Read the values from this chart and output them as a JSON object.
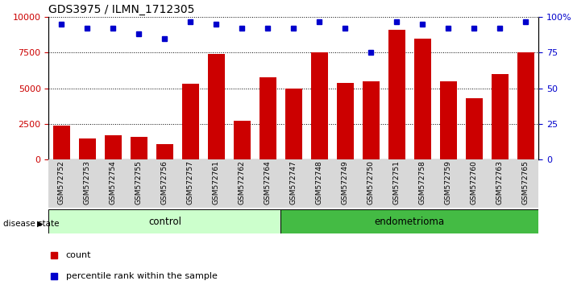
{
  "title": "GDS3975 / ILMN_1712305",
  "samples": [
    "GSM572752",
    "GSM572753",
    "GSM572754",
    "GSM572755",
    "GSM572756",
    "GSM572757",
    "GSM572761",
    "GSM572762",
    "GSM572764",
    "GSM572747",
    "GSM572748",
    "GSM572749",
    "GSM572750",
    "GSM572751",
    "GSM572758",
    "GSM572759",
    "GSM572760",
    "GSM572763",
    "GSM572765"
  ],
  "counts": [
    2400,
    1500,
    1700,
    1600,
    1100,
    5300,
    7400,
    2700,
    5800,
    5000,
    7500,
    5400,
    5500,
    9100,
    8500,
    5500,
    4300,
    6000,
    7500
  ],
  "percentile": [
    95,
    92,
    92,
    88,
    85,
    97,
    95,
    92,
    92,
    92,
    97,
    92,
    75,
    97,
    95,
    92,
    92,
    92,
    97
  ],
  "groups": [
    "control",
    "control",
    "control",
    "control",
    "control",
    "control",
    "control",
    "control",
    "control",
    "endometrioma",
    "endometrioma",
    "endometrioma",
    "endometrioma",
    "endometrioma",
    "endometrioma",
    "endometrioma",
    "endometrioma",
    "endometrioma",
    "endometrioma"
  ],
  "bar_color": "#cc0000",
  "dot_color": "#0000cc",
  "control_bg": "#ccffcc",
  "endometrioma_bg": "#44bb44",
  "ylim_left": [
    0,
    10000
  ],
  "ylim_right": [
    0,
    100
  ],
  "yticks_left": [
    0,
    2500,
    5000,
    7500,
    10000
  ],
  "yticks_right": [
    0,
    25,
    50,
    75,
    100
  ],
  "legend_count_label": "count",
  "legend_pct_label": "percentile rank within the sample",
  "group_label": "disease state",
  "title_fontsize": 10
}
